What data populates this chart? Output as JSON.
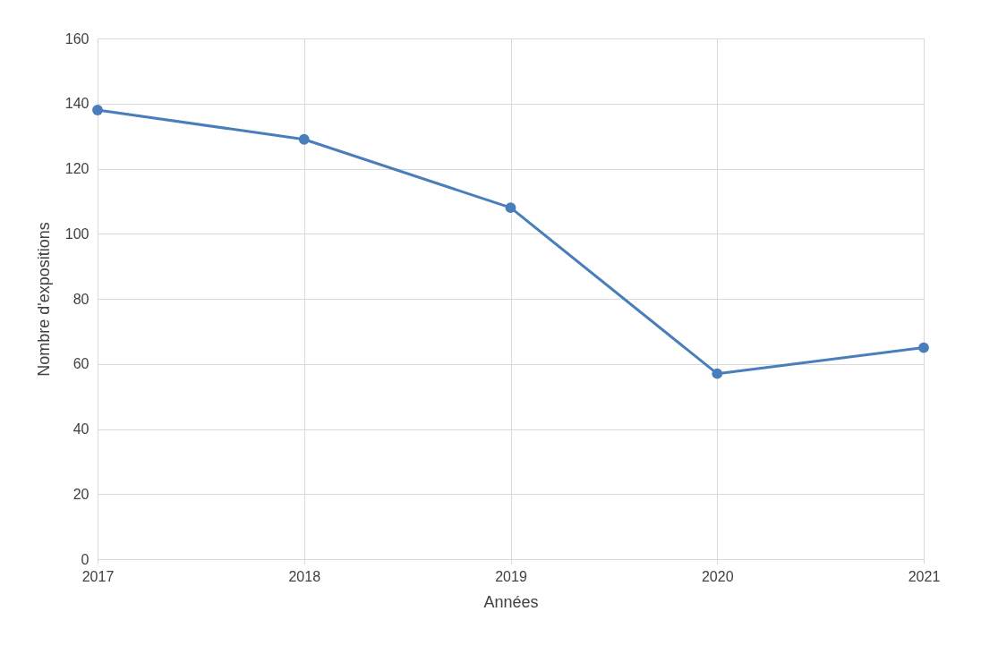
{
  "chart_data": {
    "type": "line",
    "xlabel": "Années",
    "ylabel": "Nombre d'expositions",
    "categories": [
      "2017",
      "2018",
      "2019",
      "2020",
      "2021"
    ],
    "series": [
      {
        "color": "#4a7ebb",
        "values": [
          138,
          129,
          108,
          57,
          65
        ]
      }
    ],
    "ylim": [
      0,
      160
    ],
    "yticks": [
      0,
      20,
      40,
      60,
      80,
      100,
      120,
      140,
      160
    ],
    "grid": true,
    "marker": "circle",
    "line_style": "solid"
  }
}
